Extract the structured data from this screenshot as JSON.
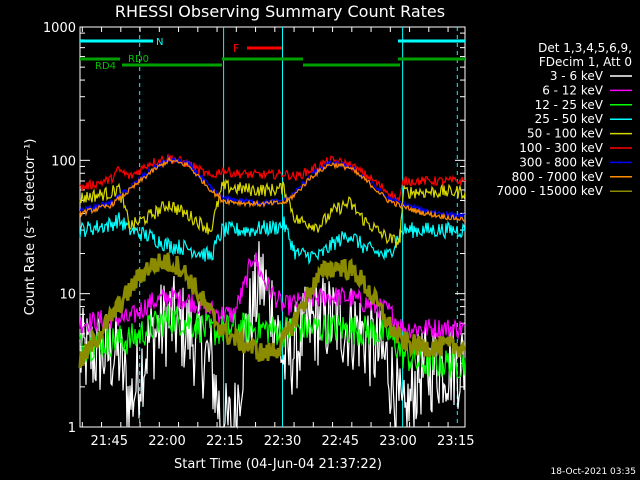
{
  "chart_data": {
    "type": "line",
    "title": "RHESSI Observing Summary Count Rates",
    "xlabel": "Start Time (04-Jun-04 21:37:22)",
    "ylabel": "Count Rate (s⁻¹ detector⁻¹)",
    "yscale": "log",
    "ylim": [
      1,
      1000
    ],
    "y_ticks": [
      "1",
      "10",
      "100",
      "1000"
    ],
    "xlim_minutes": [
      0,
      100
    ],
    "x_ticks": [
      {
        "label": "21:45",
        "t": 7.6
      },
      {
        "label": "22:00",
        "t": 22.6
      },
      {
        "label": "22:15",
        "t": 37.6
      },
      {
        "label": "22:30",
        "t": 52.6
      },
      {
        "label": "22:45",
        "t": 67.6
      },
      {
        "label": "23:00",
        "t": 82.6
      },
      {
        "label": "23:15",
        "t": 97.6
      }
    ],
    "legend_header": [
      "Det 1,3,4,5,6,9,",
      "FDecim 1, Att 0"
    ],
    "series": [
      {
        "name": "3 - 6 keV",
        "color": "#ffffff",
        "x": [
          0,
          10,
          13,
          18,
          23,
          28,
          34,
          37,
          40,
          43,
          47,
          50,
          53,
          56,
          60,
          64,
          68,
          72,
          76,
          80,
          84,
          88,
          94,
          100
        ],
        "y": [
          3.5,
          3.6,
          1.5,
          4.5,
          6.5,
          5.2,
          3,
          1,
          1,
          5,
          13,
          8,
          3,
          4,
          6,
          6.5,
          6,
          5.5,
          4,
          3,
          1,
          2.5,
          3,
          3
        ]
      },
      {
        "name": "6 - 12 keV",
        "color": "#ff00ff",
        "x": [
          0,
          8,
          13,
          18,
          23,
          28,
          34,
          37,
          40,
          43,
          45,
          47,
          50,
          53,
          56,
          60,
          64,
          68,
          72,
          76,
          80,
          84,
          88,
          94,
          100
        ],
        "y": [
          6,
          6.5,
          6.5,
          8.5,
          9.5,
          9,
          7.5,
          7,
          7,
          12,
          20,
          14,
          10,
          8,
          8.5,
          9,
          9.5,
          9.5,
          9,
          8,
          7.5,
          5.5,
          5.5,
          5.5,
          5.5
        ]
      },
      {
        "name": "12 - 25 keV",
        "color": "#00ff00",
        "x": [
          0,
          10,
          13,
          18,
          23,
          28,
          34,
          40,
          47,
          53,
          56,
          62,
          68,
          74,
          80,
          84,
          88,
          94,
          100
        ],
        "y": [
          4,
          4.5,
          4.5,
          5.5,
          6.5,
          6.2,
          5.2,
          5.5,
          5.5,
          5.2,
          5.5,
          5.5,
          5.5,
          5.3,
          5,
          3.5,
          3,
          3,
          3
        ]
      },
      {
        "name": "25 - 50 keV",
        "color": "#00ffff",
        "x": [
          0,
          8,
          10,
          13,
          18,
          23,
          28,
          34,
          37,
          40,
          45,
          47,
          50,
          53,
          56,
          62,
          66,
          70,
          74,
          80,
          83,
          84,
          88,
          94,
          100
        ],
        "y": [
          30,
          33,
          36,
          30,
          27,
          23,
          22,
          19,
          30,
          30,
          30,
          31,
          31,
          33,
          20,
          19,
          24,
          28,
          22,
          19,
          28,
          30,
          30,
          30,
          30
        ]
      },
      {
        "name": "50 - 100 keV",
        "color": "#d7d700",
        "x": [
          0,
          8,
          10,
          13,
          18,
          23,
          28,
          34,
          37,
          40,
          45,
          50,
          53,
          56,
          62,
          66,
          70,
          74,
          80,
          83,
          84,
          88,
          94,
          100
        ],
        "y": [
          52,
          57,
          62,
          32,
          38,
          47,
          39,
          30,
          64,
          62,
          60,
          60,
          62,
          36,
          32,
          42,
          48,
          35,
          26,
          24,
          58,
          58,
          58,
          58
        ]
      },
      {
        "name": "100 - 300 keV",
        "color": "#ff0000",
        "x": [
          0,
          8,
          10,
          13,
          18,
          23,
          28,
          34,
          37,
          40,
          45,
          50,
          53,
          56,
          60,
          65,
          70,
          75,
          80,
          83,
          84,
          88,
          94,
          100
        ],
        "y": [
          62,
          72,
          85,
          75,
          95,
          105,
          95,
          75,
          85,
          80,
          78,
          78,
          80,
          75,
          85,
          100,
          93,
          75,
          58,
          50,
          70,
          70,
          70,
          70
        ]
      },
      {
        "name": "300 - 800 keV",
        "color": "#0000ff",
        "x": [
          0,
          8,
          13,
          18,
          23,
          28,
          34,
          37,
          42,
          47,
          53,
          56,
          60,
          65,
          70,
          75,
          80,
          83,
          84,
          88,
          94,
          100
        ],
        "y": [
          42,
          48,
          63,
          83,
          102,
          95,
          62,
          52,
          50,
          48,
          50,
          58,
          78,
          96,
          90,
          70,
          52,
          48,
          47,
          43,
          40,
          38
        ]
      },
      {
        "name": "800 - 7000 keV",
        "color": "#ff8c00",
        "x": [
          0,
          8,
          13,
          18,
          23,
          28,
          34,
          37,
          42,
          47,
          53,
          56,
          60,
          65,
          70,
          75,
          80,
          83,
          84,
          88,
          94,
          100
        ],
        "y": [
          40,
          46,
          60,
          80,
          100,
          92,
          60,
          50,
          48,
          47,
          48,
          56,
          75,
          94,
          88,
          68,
          50,
          46,
          45,
          41,
          38,
          36
        ]
      },
      {
        "name": "7000 - 15000 keV",
        "color": "#8b8b00",
        "x": [
          0,
          5,
          10,
          15,
          18,
          22,
          26,
          30,
          34,
          38,
          44,
          48,
          52,
          56,
          60,
          64,
          68,
          72,
          76,
          80,
          83,
          88,
          94,
          100
        ],
        "y": [
          3,
          5,
          8,
          13,
          16,
          17.5,
          16,
          11,
          7,
          5,
          4,
          3.5,
          4,
          6.5,
          11,
          15.5,
          16,
          14,
          9.5,
          6,
          4.5,
          4,
          4,
          4
        ]
      }
    ],
    "annotations": {
      "N": {
        "label": "N",
        "color": "#00ffff"
      },
      "F": {
        "label": "F",
        "color": "#ff0000"
      },
      "RD0": {
        "label": "RD0",
        "color": "#008000"
      },
      "RD4": {
        "label": "RD4",
        "color": "#008000"
      }
    },
    "vertical_lines_solid_t": [
      37.3,
      52.6,
      83.8
    ],
    "vertical_lines_dashed_t": [
      15.5,
      98.0
    ],
    "footer_date": "18-Oct-2021 03:35"
  }
}
